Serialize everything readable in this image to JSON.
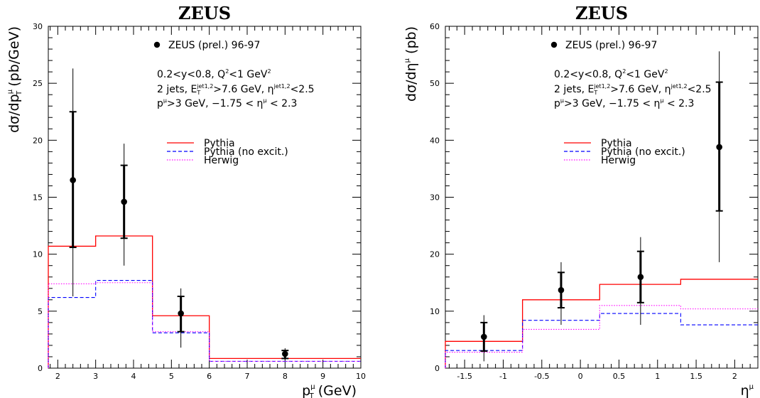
{
  "chart_data": [
    {
      "type": "line",
      "title": "ZEUS",
      "xlabel": {
        "main": "p",
        "sub": "T",
        "sup": "μ",
        "unit": " (GeV)"
      },
      "ylabel": {
        "pre": "dσ/dp",
        "sub": "T",
        "sup": "μ",
        "unit": " (pb/GeV)"
      },
      "xlim": [
        1.75,
        10
      ],
      "ylim": [
        0,
        30
      ],
      "xticks": [
        2,
        3,
        4,
        5,
        6,
        7,
        8,
        9,
        10
      ],
      "yticks": [
        0,
        5,
        10,
        15,
        20,
        25,
        30
      ],
      "data_label": "ZEUS (prel.) 96-97",
      "annotations": {
        "line1_pre": "0.2<y<0.8, Q",
        "line1_sup": "2",
        "line1_post": "<1 GeV",
        "line1_sup2": "2",
        "line2_pre": "2 jets, E",
        "line2_sub": "T",
        "line2_sup": "jet1,2",
        "line2_mid": ">7.6 GeV, η",
        "line2_sup2": "jet1,2",
        "line2_post": "<2.5",
        "line3_pre": "p",
        "line3_sup": "μ",
        "line3_mid": ">3 GeV, −1.75 < η",
        "line3_sup2": "μ",
        "line3_post": " < 2.3"
      },
      "data_points": [
        {
          "x": 2.4,
          "y": 16.5,
          "stat": [
            10.6,
            22.5
          ],
          "total": [
            6.3,
            26.3
          ]
        },
        {
          "x": 3.75,
          "y": 14.6,
          "stat": [
            11.4,
            17.8
          ],
          "total": [
            9.0,
            19.7
          ]
        },
        {
          "x": 5.25,
          "y": 4.8,
          "stat": [
            3.2,
            6.3
          ],
          "total": [
            1.8,
            7.0
          ]
        },
        {
          "x": 8.0,
          "y": 1.25,
          "stat": [
            0.85,
            1.55
          ],
          "total": [
            0.7,
            1.75
          ]
        }
      ],
      "series": [
        {
          "name": "Pythia",
          "style": "solid",
          "color": "#ff0000",
          "edges": [
            1.75,
            3.0,
            4.5,
            6.0,
            10.0
          ],
          "values": [
            10.7,
            11.6,
            4.6,
            0.85
          ]
        },
        {
          "name": "Pythia (no excit.)",
          "style": "dashed",
          "color": "#0000ff",
          "edges": [
            1.75,
            3.0,
            4.5,
            6.0,
            10.0
          ],
          "values": [
            6.2,
            7.7,
            3.1,
            0.6
          ]
        },
        {
          "name": "Herwig",
          "style": "dotted",
          "color": "#ff00ff",
          "edges": [
            1.75,
            3.0,
            4.5,
            6.0,
            10.0
          ],
          "values": [
            7.4,
            7.5,
            3.2,
            0.6
          ]
        }
      ]
    },
    {
      "type": "line",
      "title": "ZEUS",
      "xlabel": {
        "main": "η",
        "sub": "",
        "sup": "μ",
        "unit": ""
      },
      "ylabel": {
        "pre": "dσ/dη",
        "sub": "",
        "sup": "μ",
        "unit": " (pb)"
      },
      "xlim": [
        -1.75,
        2.3
      ],
      "ylim": [
        0,
        60
      ],
      "xticks": [
        -1.5,
        -1,
        -0.5,
        0,
        0.5,
        1,
        1.5,
        2
      ],
      "yticks": [
        0,
        10,
        20,
        30,
        40,
        50,
        60
      ],
      "data_label": "ZEUS (prel.) 96-97",
      "annotations": {
        "line1_pre": "0.2<y<0.8, Q",
        "line1_sup": "2",
        "line1_post": "<1 GeV",
        "line1_sup2": "2",
        "line2_pre": "2 jets, E",
        "line2_sub": "T",
        "line2_sup": "jet1,2",
        "line2_mid": ">7.6 GeV, η",
        "line2_sup2": "jet1,2",
        "line2_post": "<2.5",
        "line3_pre": "p",
        "line3_sup": "μ",
        "line3_mid": ">3 GeV, −1.75 < η",
        "line3_sup2": "μ",
        "line3_post": " < 2.3"
      },
      "data_points": [
        {
          "x": -1.25,
          "y": 5.5,
          "stat": [
            3.0,
            8.0
          ],
          "total": [
            1.2,
            9.3
          ]
        },
        {
          "x": -0.25,
          "y": 13.7,
          "stat": [
            10.6,
            16.8
          ],
          "total": [
            7.6,
            18.6
          ]
        },
        {
          "x": 0.78,
          "y": 16.0,
          "stat": [
            11.5,
            20.5
          ],
          "total": [
            7.6,
            23.0
          ]
        },
        {
          "x": 1.8,
          "y": 38.8,
          "stat": [
            27.6,
            50.2
          ],
          "total": [
            18.6,
            55.6
          ]
        }
      ],
      "series": [
        {
          "name": "Pythia",
          "style": "solid",
          "color": "#ff0000",
          "edges": [
            -1.75,
            -0.75,
            0.25,
            1.3,
            2.3
          ],
          "values": [
            4.7,
            12.0,
            14.7,
            15.6
          ]
        },
        {
          "name": "Pythia (no excit.)",
          "style": "dashed",
          "color": "#0000ff",
          "edges": [
            -1.75,
            -0.75,
            0.25,
            1.3,
            2.3
          ],
          "values": [
            3.1,
            8.4,
            9.6,
            7.6
          ]
        },
        {
          "name": "Herwig",
          "style": "dotted",
          "color": "#ff00ff",
          "edges": [
            -1.75,
            -0.75,
            0.25,
            1.3,
            2.3
          ],
          "values": [
            2.8,
            6.8,
            11.0,
            10.4
          ]
        }
      ]
    }
  ]
}
